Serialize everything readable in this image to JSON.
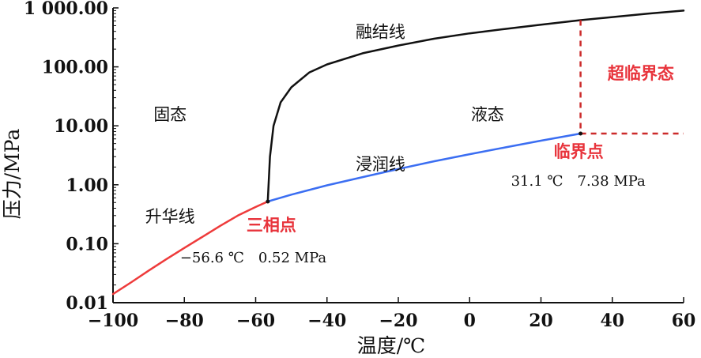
{
  "chart_data": {
    "type": "line",
    "title": "",
    "xlabel": "温度/℃",
    "ylabel": "压力/MPa",
    "xlim": [
      -100,
      60
    ],
    "ylim": [
      0.01,
      1000
    ],
    "y_scale": "log",
    "x_ticks": [
      "−100",
      "−80",
      "−60",
      "−40",
      "−20",
      "0",
      "20",
      "40",
      "60"
    ],
    "y_ticks": [
      "0.01",
      "0.10",
      "1.00",
      "10.00",
      "100.00",
      "1 000.00"
    ],
    "x_tick_values": [
      -100,
      -80,
      -60,
      -40,
      -20,
      0,
      20,
      40,
      60
    ],
    "y_tick_values": [
      0.01,
      0.1,
      1,
      10,
      100,
      1000
    ],
    "grid": false,
    "series": [
      {
        "name": "升华线",
        "color": "#ee3b3b",
        "x": [
          -100,
          -95,
          -90,
          -85,
          -80,
          -75,
          -70,
          -65,
          -60,
          -56.6
        ],
        "y": [
          0.014,
          0.022,
          0.035,
          0.055,
          0.085,
          0.13,
          0.2,
          0.3,
          0.42,
          0.52
        ]
      },
      {
        "name": "浸润线",
        "color": "#3b6ef2",
        "x": [
          -56.6,
          -50,
          -40,
          -30,
          -20,
          -10,
          0,
          10,
          20,
          31.1
        ],
        "y": [
          0.52,
          0.68,
          0.98,
          1.35,
          1.85,
          2.5,
          3.3,
          4.3,
          5.6,
          7.38
        ]
      },
      {
        "name": "融结线",
        "color": "#111111",
        "x": [
          -56.6,
          -56,
          -55,
          -53,
          -50,
          -45,
          -40,
          -30,
          -20,
          -10,
          0,
          10,
          20,
          31.1,
          40,
          50,
          60
        ],
        "y": [
          0.52,
          3,
          10,
          25,
          45,
          80,
          110,
          170,
          230,
          300,
          370,
          440,
          520,
          620,
          700,
          800,
          900
        ]
      }
    ],
    "points": [
      {
        "name": "三相点",
        "x": -56.6,
        "y": 0.52,
        "label": "−56.6 ℃　0.52 MPa"
      },
      {
        "name": "临界点",
        "x": 31.1,
        "y": 7.38,
        "label": "31.1 ℃　7.38 MPa"
      }
    ],
    "annotations": [
      {
        "id": "solid",
        "text": "固态",
        "x": -84,
        "y": 16
      },
      {
        "id": "liquid",
        "text": "液态",
        "x": 5,
        "y": 16
      },
      {
        "id": "fusion",
        "text": "融结线",
        "x": -25,
        "y": 400
      },
      {
        "id": "vapor",
        "text": "浸润线",
        "x": -25,
        "y": 2.3
      },
      {
        "id": "sublimation",
        "text": "升华线",
        "x": -84,
        "y": 0.3
      },
      {
        "id": "supercritical",
        "text": "超临界态",
        "x": 48,
        "y": 80
      }
    ],
    "critical_lines": {
      "color": "#cc2b2b",
      "style": "dashed"
    },
    "colors": {
      "red": "#ee3b3b",
      "blue": "#3b6ef2",
      "label_red": "#e8343c"
    }
  }
}
